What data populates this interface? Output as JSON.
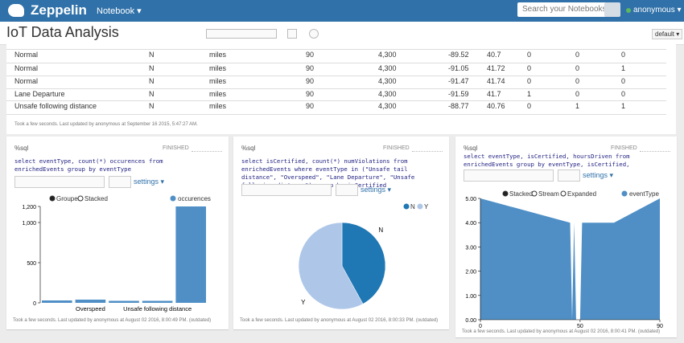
{
  "header": {
    "logo": "Zeppelin",
    "menu": "Notebook",
    "search_placeholder": "Search your Notebooks",
    "user": "anonymous"
  },
  "notebook": {
    "title": "IoT Data Analysis",
    "interpreter": "default"
  },
  "table": {
    "rows": [
      [
        "Normal",
        "N",
        "miles",
        "90",
        "4,300",
        "-89.52",
        "40.7",
        "0",
        "0",
        "0"
      ],
      [
        "Normal",
        "N",
        "miles",
        "90",
        "4,300",
        "-91.05",
        "41.72",
        "0",
        "0",
        "1"
      ],
      [
        "Normal",
        "N",
        "miles",
        "90",
        "4,300",
        "-91.47",
        "41.74",
        "0",
        "0",
        "0"
      ],
      [
        "Lane Departure",
        "N",
        "miles",
        "90",
        "4,300",
        "-91.59",
        "41.7",
        "1",
        "0",
        "0"
      ],
      [
        "Unsafe following distance",
        "N",
        "miles",
        "90",
        "4,300",
        "-88.77",
        "40.76",
        "0",
        "1",
        "1"
      ]
    ],
    "footer": "Took a few seconds. Last updated by anonymous at September 16 2015, 5:47:27 AM."
  },
  "paragraphs": [
    {
      "interpreter": "%sql",
      "status": "FINISHED",
      "code": "select eventType, count(*) occurences from enrichedEvents group by eventType",
      "settings": "settings",
      "footer": "Took a few seconds. Last updated by anonymous at August 02 2016, 8:00:49 PM. (outdated)",
      "chart_data": {
        "type": "bar",
        "options": [
          "Grouped",
          "Stacked"
        ],
        "categories": [
          null,
          "Overspeed",
          null,
          "Unsafe following distance",
          null
        ],
        "series": [
          {
            "name": "occurences",
            "color": "#4f8fc6",
            "values": [
              30,
              40,
              25,
              25,
              1200
            ]
          }
        ],
        "ylim": [
          0,
          1200
        ],
        "yticks": [
          0,
          500,
          {
            "value": 1000,
            "label": "1,000"
          },
          {
            "value": 1200,
            "label": "1,200"
          }
        ]
      }
    },
    {
      "interpreter": "%sql",
      "status": "FINISHED",
      "code": "select isCertified, count(*) numViolations from enrichedEvents where eventType in (\"Unsafe tail distance\", \"Overspeed\", \"Lane Departure\", \"Unsafe following distance\") group by isCertified",
      "settings": "settings",
      "footer": "Took a few seconds. Last updated by anonymous at August 02 2016, 8:00:33 PM. (outdated)",
      "chart_data": {
        "type": "pie",
        "categories": [
          "N",
          "Y"
        ],
        "values": [
          42,
          58
        ],
        "colors": [
          "#1f77b4",
          "#aec7e8"
        ]
      }
    },
    {
      "interpreter": "%sql",
      "status": "FINISHED",
      "code": "select eventType, isCertified, hoursDriven from enrichedEvents group by eventType, isCertified, hoursDriven",
      "settings": "settings",
      "footer": "Took a few seconds. Last updated by anonymous at August 02 2016, 8:00:41 PM. (outdated)",
      "chart_data": {
        "type": "area",
        "options": [
          "Stacked",
          "Stream",
          "Expanded"
        ],
        "x": [
          0,
          45,
          46,
          47,
          48,
          50,
          51,
          67,
          90
        ],
        "series": [
          {
            "name": "eventType",
            "color": "#4f8fc6",
            "values": [
              5,
              4,
              0,
              4,
              0,
              0,
              4,
              4,
              5
            ]
          }
        ],
        "xlim": [
          0,
          90
        ],
        "xticks": [
          0,
          50,
          90
        ],
        "ylim": [
          0,
          5
        ],
        "yticks": [
          {
            "value": 0,
            "label": "0.00"
          },
          {
            "value": 1,
            "label": "1.00"
          },
          {
            "value": 2,
            "label": "2.00"
          },
          {
            "value": 3,
            "label": "3.00"
          },
          {
            "value": 4,
            "label": "4.00"
          },
          {
            "value": 5,
            "label": "5.00"
          }
        ]
      }
    }
  ]
}
